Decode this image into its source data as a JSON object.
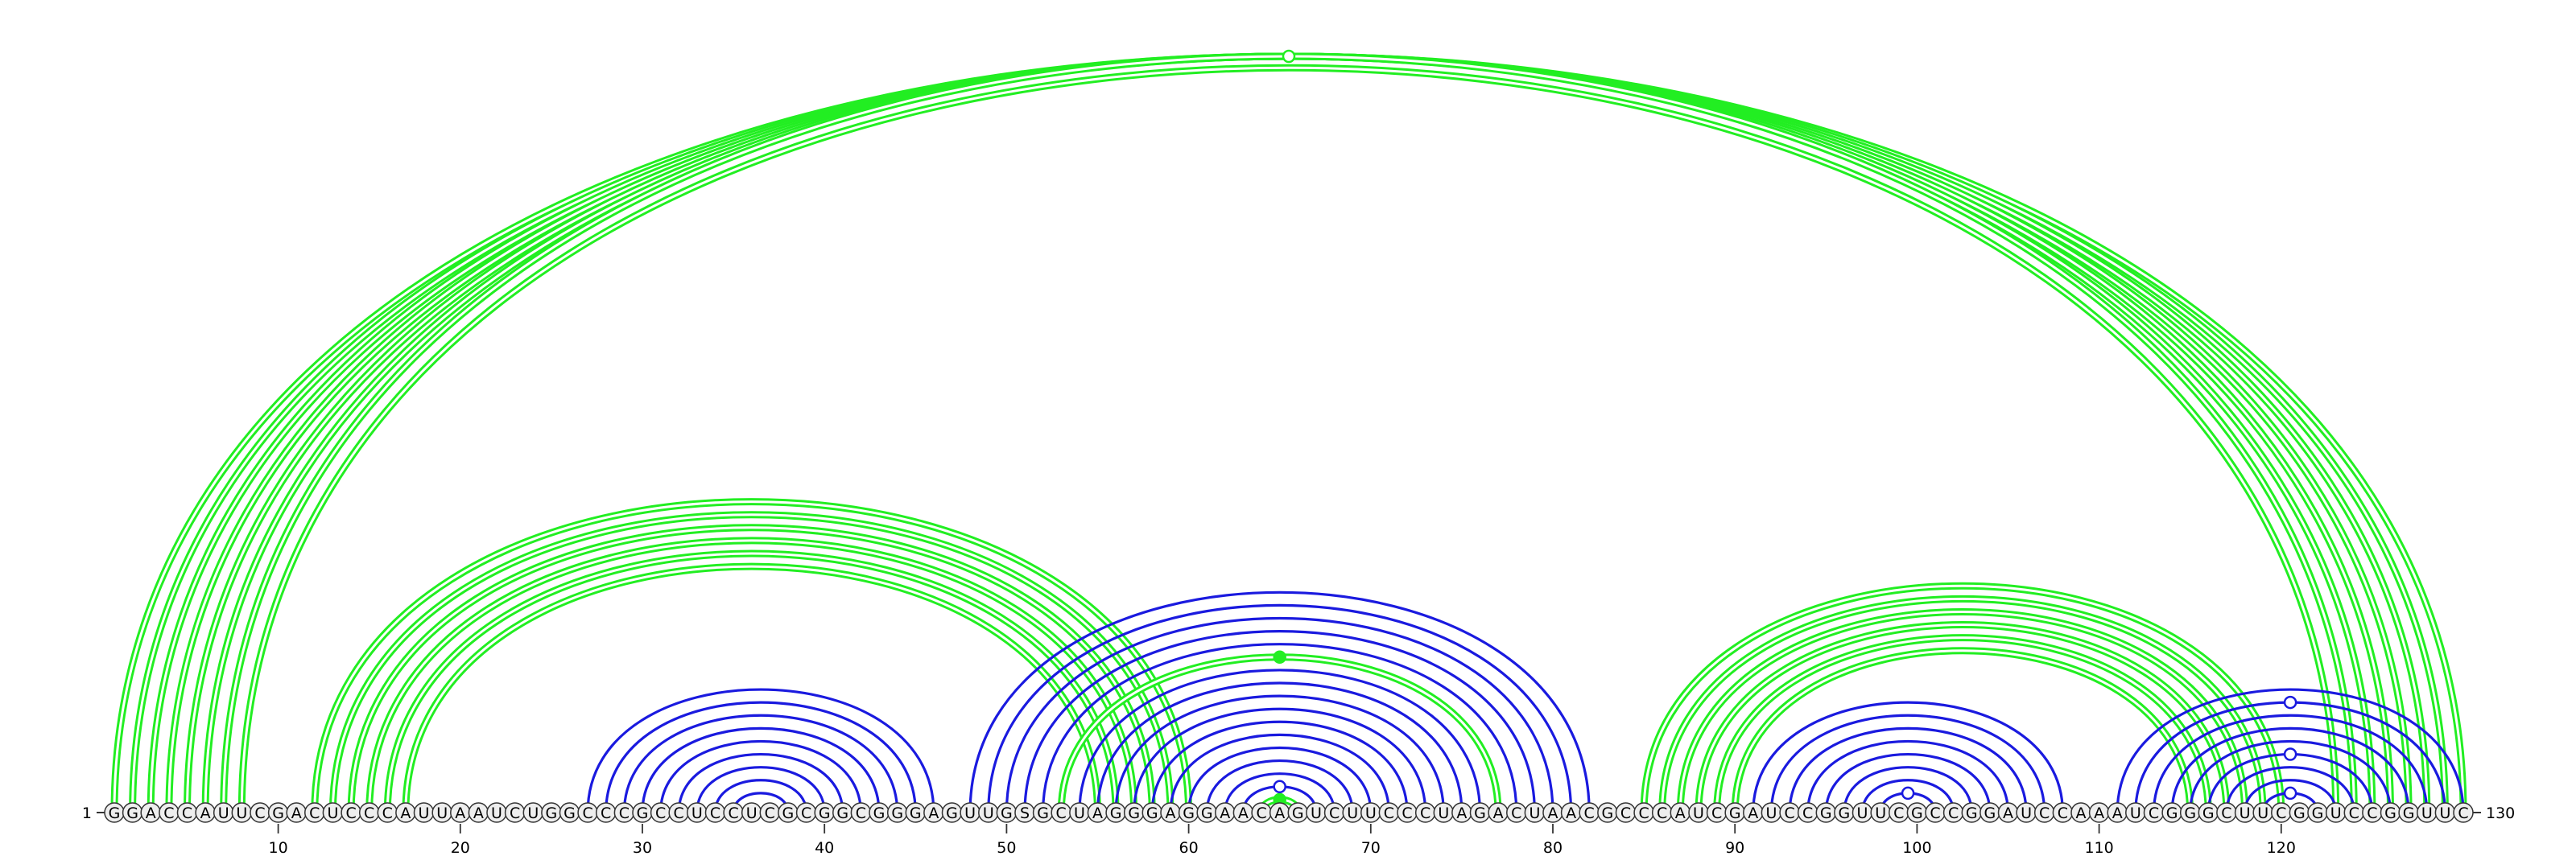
{
  "diagram": {
    "type": "rna-arc-diagram",
    "sequence": "GGACCAUUCGACUCCCAUUAAUCUGGCCCGCCUCCUCGCGGCGGGAGUUGSGCUAGGGAGGAACAGUCUUCCCUAGACUAACGCCCAUCGAUCCGGUUCGCCGGAUCCAAAUCGGGCUUCGGUCCGGUUC",
    "start_label": "1",
    "end_label": "130",
    "tick_positions": [
      10,
      20,
      30,
      40,
      50,
      60,
      70,
      80,
      90,
      100,
      110,
      120
    ],
    "tick_labels": [
      "10",
      "20",
      "30",
      "40",
      "50",
      "60",
      "70",
      "80",
      "90",
      "100",
      "110",
      "120"
    ],
    "colors": {
      "green": "#22ee22",
      "blue": "#1a1adf",
      "nucleotide_fill": "#eeeeee",
      "outline": "#333333"
    },
    "green_pairs": [
      [
        1,
        130
      ],
      [
        2,
        129
      ],
      [
        3,
        128
      ],
      [
        4,
        127
      ],
      [
        5,
        126
      ],
      [
        6,
        125
      ],
      [
        7,
        124
      ],
      [
        8,
        123
      ],
      [
        12,
        60
      ],
      [
        13,
        59
      ],
      [
        14,
        58
      ],
      [
        15,
        57
      ],
      [
        16,
        56
      ],
      [
        17,
        55
      ],
      [
        53,
        77
      ],
      [
        64,
        66
      ],
      [
        85,
        120
      ],
      [
        86,
        119
      ],
      [
        87,
        118
      ],
      [
        88,
        117
      ],
      [
        89,
        116
      ],
      [
        90,
        115
      ]
    ],
    "blue_pairs": [
      [
        27,
        46
      ],
      [
        28,
        45
      ],
      [
        29,
        44
      ],
      [
        30,
        43
      ],
      [
        31,
        42
      ],
      [
        32,
        41
      ],
      [
        33,
        40
      ],
      [
        34,
        39
      ],
      [
        35,
        38
      ],
      [
        48,
        82
      ],
      [
        49,
        81
      ],
      [
        50,
        80
      ],
      [
        51,
        79
      ],
      [
        52,
        78
      ],
      [
        54,
        76
      ],
      [
        55,
        75
      ],
      [
        56,
        74
      ],
      [
        57,
        73
      ],
      [
        58,
        72
      ],
      [
        59,
        71
      ],
      [
        60,
        70
      ],
      [
        61,
        69
      ],
      [
        62,
        68
      ],
      [
        63,
        67
      ],
      [
        91,
        108
      ],
      [
        92,
        107
      ],
      [
        93,
        106
      ],
      [
        94,
        105
      ],
      [
        95,
        104
      ],
      [
        96,
        103
      ],
      [
        97,
        102
      ],
      [
        98,
        101
      ],
      [
        111,
        130
      ],
      [
        112,
        129
      ],
      [
        113,
        128
      ],
      [
        114,
        127
      ],
      [
        115,
        126
      ],
      [
        116,
        125
      ],
      [
        117,
        124
      ],
      [
        118,
        123
      ],
      [
        119,
        122
      ]
    ],
    "green_apex_markers": [
      {
        "i": 1,
        "j": 130,
        "filled": false
      },
      {
        "i": 53,
        "j": 77,
        "filled": true
      },
      {
        "i": 64,
        "j": 66,
        "filled": true
      }
    ],
    "blue_apex_markers": [
      {
        "i": 63,
        "j": 67,
        "filled": false
      },
      {
        "i": 98,
        "j": 101,
        "filled": false
      },
      {
        "i": 119,
        "j": 122,
        "filled": false
      },
      {
        "i": 116,
        "j": 125,
        "filled": false
      },
      {
        "i": 112,
        "j": 129,
        "filled": false
      }
    ]
  }
}
